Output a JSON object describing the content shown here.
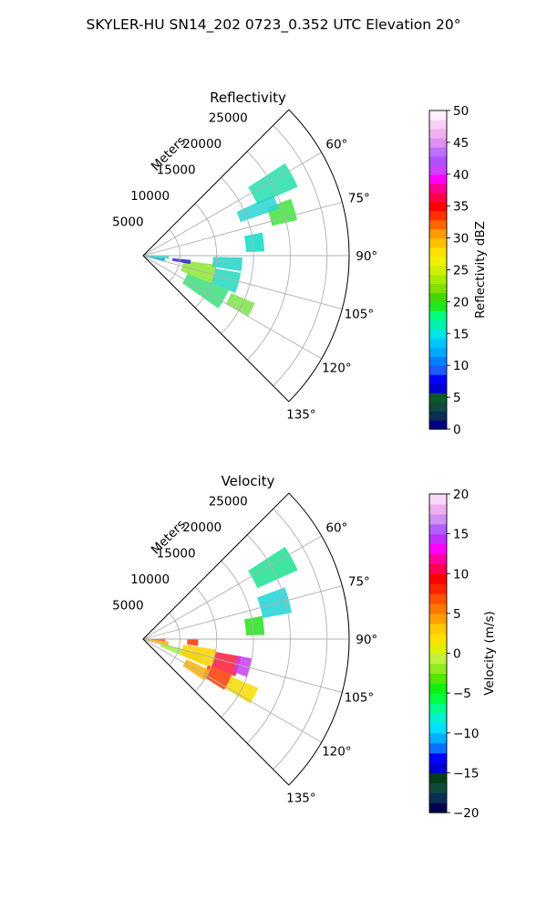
{
  "figure": {
    "suptitle": "SKYLER-HU  SN14_202  0723_0.352 UTC Elevation 20°"
  },
  "chart_data": [
    {
      "type": "polar-sector",
      "title": "Reflectivity",
      "range_label": "Meters",
      "range_ticks": [
        "5000",
        "10000",
        "15000",
        "20000",
        "25000"
      ],
      "range_values": [
        5000,
        10000,
        15000,
        20000,
        25000
      ],
      "rmax": 28000,
      "azimuth_ticks": [
        "60°",
        "75°",
        "90°",
        "105°",
        "120°",
        "135°"
      ],
      "azimuth_values": [
        60,
        75,
        90,
        105,
        120,
        135
      ],
      "azimuth_range": [
        45,
        135
      ],
      "grid": true,
      "colorbar": {
        "label": "Reflectivity dBZ",
        "min": 0,
        "max": 50,
        "ticks": [
          "0",
          "5",
          "10",
          "15",
          "20",
          "25",
          "30",
          "35",
          "40",
          "45",
          "50"
        ],
        "tick_values": [
          0,
          5,
          10,
          15,
          20,
          25,
          30,
          35,
          40,
          45,
          50
        ]
      },
      "echo_bands": [
        {
          "az": [
            89,
            97
          ],
          "r": [
            0,
            3500
          ],
          "color": "#22dfb0"
        },
        {
          "az": [
            97,
            106
          ],
          "r": [
            0,
            3000
          ],
          "color": "#00a5ff"
        },
        {
          "az": [
            97,
            112
          ],
          "r": [
            5500,
            10000
          ],
          "color": "#8ee632"
        },
        {
          "az": [
            100,
            112
          ],
          "r": [
            10000,
            13500
          ],
          "color": "#21d8bc"
        },
        {
          "az": [
            112,
            125
          ],
          "r": [
            6500,
            12500
          ],
          "color": "#38df7e"
        },
        {
          "az": [
            95,
            100
          ],
          "r": [
            4000,
            6500
          ],
          "color": "#2b1fd8"
        },
        {
          "az": [
            91,
            99
          ],
          "r": [
            9500,
            13500
          ],
          "color": "#23d4c8"
        },
        {
          "az": [
            79,
            88
          ],
          "r": [
            14000,
            16500
          ],
          "color": "#0fdac7"
        },
        {
          "az": [
            69,
            77
          ],
          "r": [
            18000,
            21500
          ],
          "color": "#3fe43b"
        },
        {
          "az": [
            57,
            66
          ],
          "r": [
            17000,
            23000
          ],
          "color": "#26ddab"
        },
        {
          "az": [
            65,
            71
          ],
          "r": [
            14000,
            19500
          ],
          "color": "#2cd3d6"
        },
        {
          "az": [
            113,
            120
          ],
          "r": [
            13000,
            16500
          ],
          "color": "#7ee24c"
        }
      ]
    },
    {
      "type": "polar-sector",
      "title": "Velocity",
      "range_label": "Meters",
      "range_ticks": [
        "5000",
        "10000",
        "15000",
        "20000",
        "25000"
      ],
      "range_values": [
        5000,
        10000,
        15000,
        20000,
        25000
      ],
      "rmax": 28000,
      "azimuth_ticks": [
        "60°",
        "75°",
        "90°",
        "105°",
        "120°",
        "135°"
      ],
      "azimuth_values": [
        60,
        75,
        90,
        105,
        120,
        135
      ],
      "azimuth_range": [
        45,
        135
      ],
      "grid": true,
      "colorbar": {
        "label": "Velocity (m/s)",
        "min": -20,
        "max": 20,
        "ticks": [
          "−20",
          "−15",
          "−10",
          "−5",
          "0",
          "5",
          "10",
          "15",
          "20"
        ],
        "tick_values": [
          -20,
          -15,
          -10,
          -5,
          0,
          5,
          10,
          15,
          20
        ]
      },
      "echo_bands": [
        {
          "az": [
            88,
            95
          ],
          "r": [
            0,
            3000
          ],
          "color": "#ff2a14"
        },
        {
          "az": [
            95,
            106
          ],
          "r": [
            0,
            3500
          ],
          "color": "#ffb400"
        },
        {
          "az": [
            104,
            113
          ],
          "r": [
            2500,
            8500
          ],
          "color": "#a3f03b"
        },
        {
          "az": [
            98,
            113
          ],
          "r": [
            5500,
            10000
          ],
          "color": "#ffd200"
        },
        {
          "az": [
            100,
            112
          ],
          "r": [
            10000,
            13500
          ],
          "color": "#ff1a3a"
        },
        {
          "az": [
            100,
            110
          ],
          "r": [
            13000,
            15000
          ],
          "color": "#c83cf0"
        },
        {
          "az": [
            112,
            122
          ],
          "r": [
            9500,
            13000
          ],
          "color": "#ff3b00"
        },
        {
          "az": [
            115,
            124
          ],
          "r": [
            6500,
            10000
          ],
          "color": "#ffb000"
        },
        {
          "az": [
            90,
            97
          ],
          "r": [
            6000,
            7500
          ],
          "color": "#ff3300"
        },
        {
          "az": [
            79,
            88
          ],
          "r": [
            14000,
            16500
          ],
          "color": "#28e020"
        },
        {
          "az": [
            70,
            80
          ],
          "r": [
            16500,
            20500
          ],
          "color": "#1fd2d6"
        },
        {
          "az": [
            57,
            66
          ],
          "r": [
            17000,
            23000
          ],
          "color": "#1fe090"
        },
        {
          "az": [
            113,
            121
          ],
          "r": [
            13000,
            17000
          ],
          "color": "#f7dc00"
        }
      ]
    }
  ]
}
